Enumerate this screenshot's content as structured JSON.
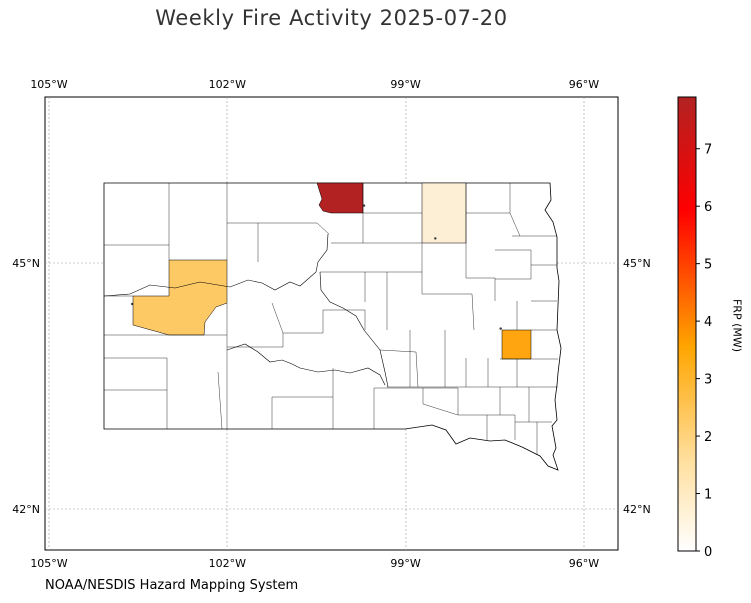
{
  "title": "Weekly Fire Activity 2025-07-20",
  "source": "NOAA/NESDIS Hazard Mapping System",
  "map": {
    "state": "South Dakota",
    "lon_ticks": [
      {
        "lon": -105,
        "label": "105°W"
      },
      {
        "lon": -102,
        "label": "102°W"
      },
      {
        "lon": -99,
        "label": "99°W"
      },
      {
        "lon": -96,
        "label": "96°W"
      }
    ],
    "lat_ticks": [
      {
        "lat": 45,
        "label": "45°N"
      },
      {
        "lat": 42,
        "label": "42°N"
      }
    ],
    "gridlines": true,
    "highlighted_counties": [
      {
        "lon": -99.9,
        "lat": 45.7,
        "frp": 7.9,
        "color": "#b22222"
      },
      {
        "lon": -98.4,
        "lat": 45.6,
        "frp": 0.2,
        "color": "#fdefd6"
      },
      {
        "lon": -103.3,
        "lat": 44.6,
        "frp": 1.8,
        "color": "#fdc964"
      },
      {
        "lon": -97.5,
        "lat": 44.2,
        "frp": 2.7,
        "color": "#ffa50f"
      }
    ],
    "fire_points": [
      {
        "lon": -99.7,
        "lat": 45.7
      },
      {
        "lon": -98.5,
        "lat": 45.3
      },
      {
        "lon": -103.6,
        "lat": 44.5
      },
      {
        "lon": -97.4,
        "lat": 44.2
      }
    ]
  },
  "colorbar": {
    "label": "FRP (MW)",
    "min": 0,
    "max": 7.9,
    "ticks": [
      {
        "value": 0,
        "label": "0"
      },
      {
        "value": 1,
        "label": "1"
      },
      {
        "value": 2,
        "label": "2"
      },
      {
        "value": 3,
        "label": "3"
      },
      {
        "value": 4,
        "label": "4"
      },
      {
        "value": 5,
        "label": "5"
      },
      {
        "value": 6,
        "label": "6"
      },
      {
        "value": 7,
        "label": "7"
      }
    ],
    "colors": [
      "#ffffff",
      "#ffd78c",
      "#ffa500",
      "#ff0000",
      "#b22222"
    ]
  }
}
